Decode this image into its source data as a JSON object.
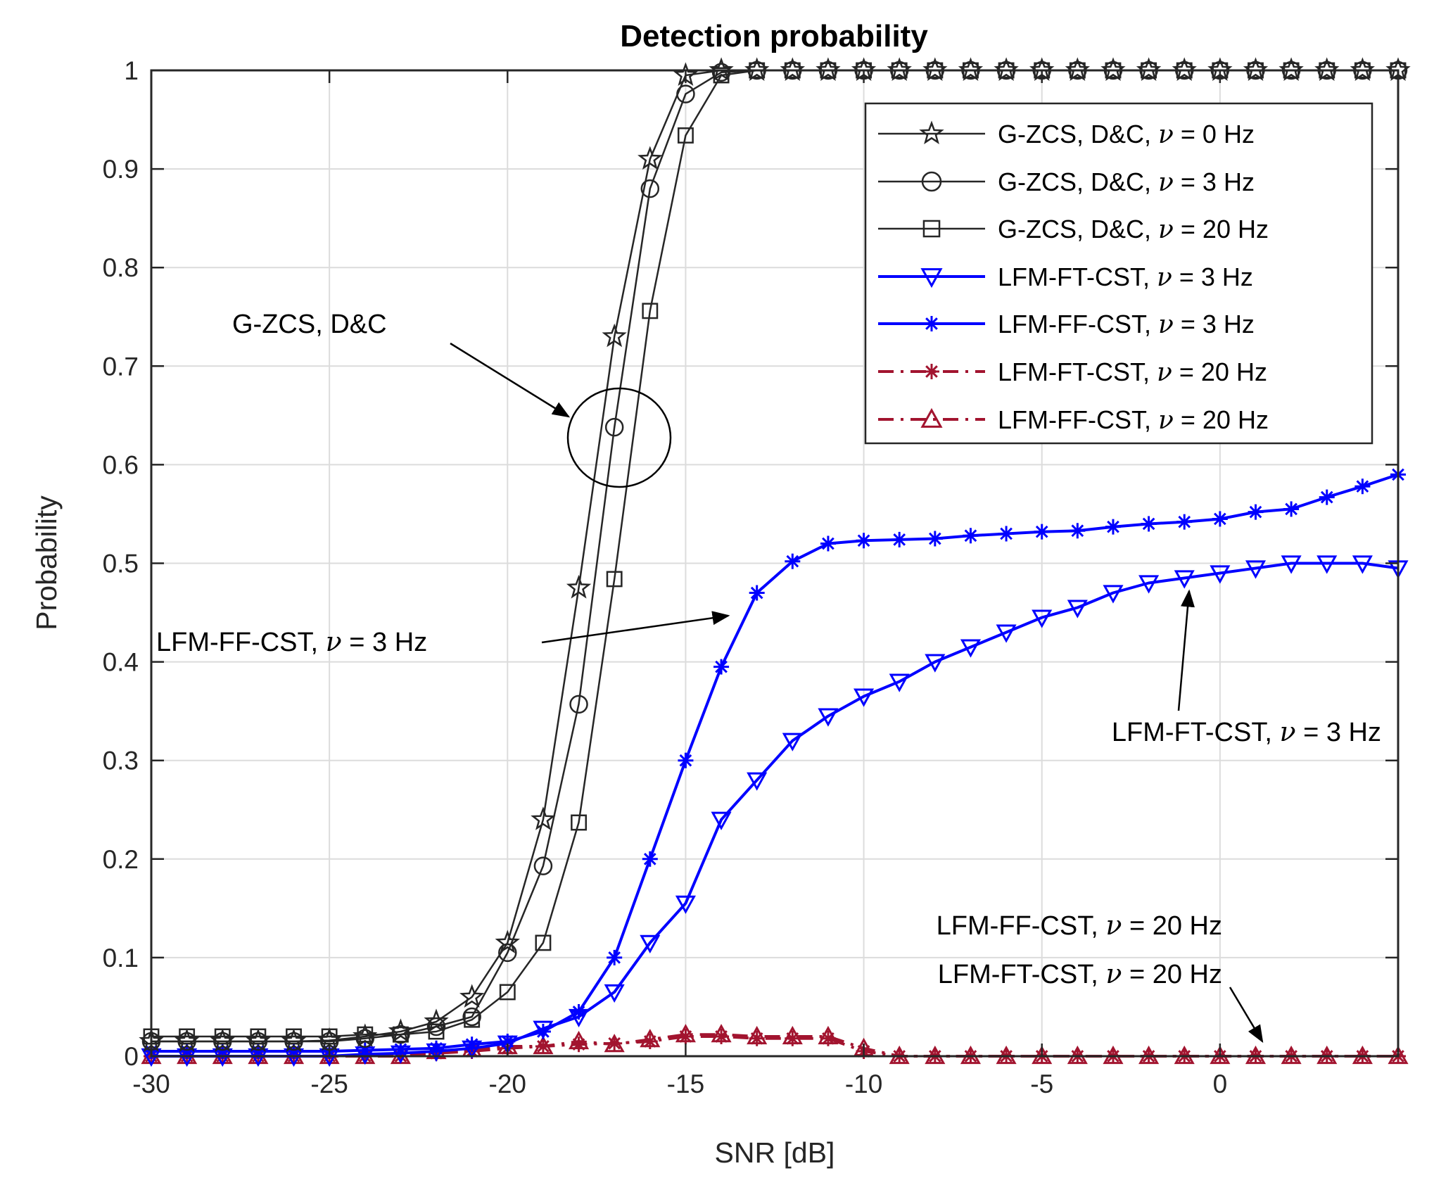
{
  "chart_data": {
    "type": "line",
    "title": "Detection probability",
    "xlabel": "SNR [dB]",
    "ylabel": "Probability",
    "xlim": [
      -30,
      5
    ],
    "ylim": [
      0,
      1
    ],
    "grid": true,
    "legend_position": "top-right",
    "x_ticks": [
      -30,
      -25,
      -20,
      -15,
      -10,
      -5,
      0
    ],
    "x_tick_labels": [
      "-30",
      "-25",
      "-20",
      "-15",
      "-10",
      "-5",
      "0"
    ],
    "y_ticks": [
      0,
      0.1,
      0.2,
      0.3,
      0.4,
      0.5,
      0.6,
      0.7,
      0.8,
      0.9,
      1
    ],
    "y_tick_labels": [
      "0",
      "0.1",
      "0.2",
      "0.3",
      "0.4",
      "0.5",
      "0.6",
      "0.7",
      "0.8",
      "0.9",
      "1"
    ],
    "x": [
      -30,
      -29,
      -28,
      -27,
      -26,
      -25,
      -24,
      -23,
      -22,
      -21,
      -20,
      -19,
      -18,
      -17,
      -16,
      -15,
      -14,
      -13,
      -12,
      -11,
      -10,
      -9,
      -8,
      -7,
      -6,
      -5,
      -4,
      -3,
      -2,
      -1,
      0,
      1,
      2,
      3,
      4,
      5
    ],
    "series": [
      {
        "name": "G-ZCS, D&C, ν = 0 Hz",
        "color": "#262626",
        "style": "solid",
        "marker": "star",
        "values": [
          0.015,
          0.015,
          0.015,
          0.015,
          0.015,
          0.016,
          0.02,
          0.025,
          0.035,
          0.06,
          0.115,
          0.24,
          0.475,
          0.73,
          0.91,
          0.995,
          1,
          1,
          1,
          1,
          1,
          1,
          1,
          1,
          1,
          1,
          1,
          1,
          1,
          1,
          1,
          1,
          1,
          1,
          1,
          1
        ]
      },
      {
        "name": "G-ZCS, D&C, ν = 3 Hz",
        "color": "#262626",
        "style": "solid",
        "marker": "circle",
        "values": [
          0.015,
          0.015,
          0.015,
          0.015,
          0.015,
          0.015,
          0.018,
          0.022,
          0.03,
          0.04,
          0.105,
          0.193,
          0.357,
          0.638,
          0.88,
          0.976,
          0.998,
          1,
          1,
          1,
          1,
          1,
          1,
          1,
          1,
          1,
          1,
          1,
          1,
          1,
          1,
          1,
          1,
          1,
          1,
          1
        ]
      },
      {
        "name": "G-ZCS, D&C, ν = 20 Hz",
        "color": "#262626",
        "style": "solid",
        "marker": "square",
        "values": [
          0.02,
          0.02,
          0.02,
          0.02,
          0.02,
          0.02,
          0.022,
          0.022,
          0.025,
          0.037,
          0.065,
          0.115,
          0.237,
          0.484,
          0.756,
          0.934,
          0.995,
          1,
          1,
          1,
          1,
          1,
          1,
          1,
          1,
          1,
          1,
          1,
          1,
          1,
          1,
          1,
          1,
          1,
          1,
          1
        ]
      },
      {
        "name": "LFM-FT-CST, ν = 3 Hz",
        "color": "#0000ff",
        "style": "solid",
        "marker": "triangle-down",
        "values": [
          0.0,
          0.0,
          0.0,
          0.0,
          0.0,
          0.0,
          0.002,
          0.003,
          0.005,
          0.008,
          0.013,
          0.028,
          0.04,
          0.065,
          0.115,
          0.155,
          0.24,
          0.28,
          0.32,
          0.345,
          0.365,
          0.38,
          0.4,
          0.415,
          0.43,
          0.445,
          0.455,
          0.47,
          0.48,
          0.485,
          0.49,
          0.495,
          0.5,
          0.5,
          0.5,
          0.495
        ]
      },
      {
        "name": "LFM-FF-CST, ν = 3 Hz",
        "color": "#0000ff",
        "style": "solid",
        "marker": "asterisk",
        "values": [
          0.005,
          0.005,
          0.005,
          0.005,
          0.005,
          0.005,
          0.006,
          0.007,
          0.008,
          0.012,
          0.015,
          0.025,
          0.045,
          0.1,
          0.2,
          0.3,
          0.395,
          0.47,
          0.502,
          0.52,
          0.523,
          0.524,
          0.525,
          0.528,
          0.53,
          0.532,
          0.533,
          0.537,
          0.54,
          0.542,
          0.545,
          0.552,
          0.555,
          0.567,
          0.578,
          0.59
        ]
      },
      {
        "name": "LFM-FT-CST, ν = 20 Hz",
        "color": "#a2142f",
        "style": "dashdot",
        "marker": "asterisk",
        "values": [
          0.0,
          0.0,
          0.0,
          0.0,
          0.0,
          0.0,
          0.0,
          0.0,
          0.003,
          0.005,
          0.008,
          0.01,
          0.012,
          0.013,
          0.015,
          0.02,
          0.02,
          0.018,
          0.018,
          0.018,
          0.005,
          0.0,
          0.0,
          0.0,
          0.0,
          0.0,
          0.0,
          0.0,
          0.0,
          0.0,
          0.0,
          0.0,
          0.0,
          0.0,
          0.0,
          0.0
        ]
      },
      {
        "name": "LFM-FF-CST, ν = 20 Hz",
        "color": "#a2142f",
        "style": "dashdot",
        "marker": "triangle-up",
        "values": [
          0.0,
          0.0,
          0.0,
          0.0,
          0.0,
          0.0,
          0.0,
          0.0,
          0.005,
          0.007,
          0.01,
          0.01,
          0.015,
          0.012,
          0.017,
          0.022,
          0.022,
          0.02,
          0.02,
          0.02,
          0.008,
          0.0,
          0.0,
          0.0,
          0.0,
          0.0,
          0.0,
          0.0,
          0.0,
          0.0,
          0.0,
          0.0,
          0.0,
          0.0,
          0.0,
          0.0
        ]
      }
    ],
    "legend": {
      "entries": [
        {
          "prefix": "G-ZCS, D&C, ",
          "symbol": "ν",
          "suffix": " = 0 Hz"
        },
        {
          "prefix": "G-ZCS, D&C, ",
          "symbol": "ν",
          "suffix": " = 3 Hz"
        },
        {
          "prefix": "G-ZCS, D&C, ",
          "symbol": "ν",
          "suffix": " = 20 Hz"
        },
        {
          "prefix": "LFM-FT-CST, ",
          "symbol": "ν",
          "suffix": " = 3 Hz"
        },
        {
          "prefix": "LFM-FF-CST, ",
          "symbol": "ν",
          "suffix": " = 3 Hz"
        },
        {
          "prefix": "LFM-FT-CST, ",
          "symbol": "ν",
          "suffix": " = 20 Hz"
        },
        {
          "prefix": "LFM-FF-CST, ",
          "symbol": "ν",
          "suffix": " = 20 Hz"
        }
      ]
    },
    "annotations": [
      {
        "prefix": "G-ZCS, D&C",
        "symbol": "",
        "suffix": ""
      },
      {
        "prefix": "LFM-FF-CST, ",
        "symbol": "ν",
        "suffix": " = 3 Hz"
      },
      {
        "prefix": "LFM-FT-CST, ",
        "symbol": "ν",
        "suffix": " = 3 Hz"
      },
      {
        "prefix": "LFM-FF-CST, ",
        "symbol": "ν",
        "suffix": " = 20 Hz"
      },
      {
        "prefix": "LFM-FT-CST, ",
        "symbol": "ν",
        "suffix": " = 20 Hz"
      }
    ]
  }
}
